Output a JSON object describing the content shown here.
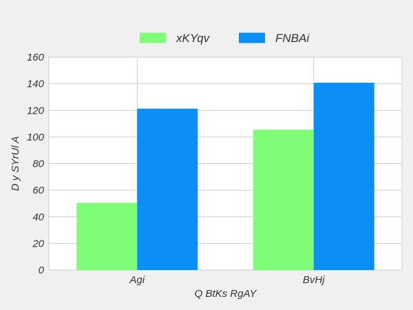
{
  "chart_data": {
    "type": "bar",
    "title": "",
    "xlabel": "Q BtKs RgAY",
    "ylabel": "D y SYrUl  A",
    "categories": [
      "Agi",
      "BvHj"
    ],
    "series": [
      {
        "name": "xKYqv",
        "color": "#7ffc78",
        "values": [
          50.5,
          105.5
        ]
      },
      {
        "name": "FNBAi",
        "color": "#0a8ff7",
        "values": [
          121.3,
          140.8
        ]
      }
    ],
    "ylim": [
      0,
      160
    ],
    "yticks": [
      0,
      20,
      40,
      60,
      80,
      100,
      120,
      140,
      160
    ],
    "grid": true,
    "legend_position": "top"
  }
}
